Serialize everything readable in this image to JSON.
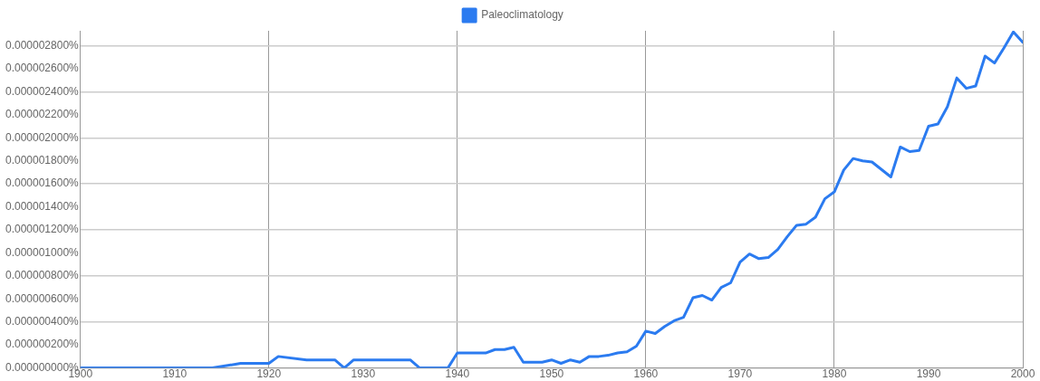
{
  "chart_data": {
    "type": "line",
    "x": [
      1900,
      1914,
      1917,
      1920,
      1921,
      1924,
      1927,
      1928,
      1929,
      1935,
      1936,
      1939,
      1940,
      1943,
      1944,
      1945,
      1946,
      1947,
      1949,
      1950,
      1951,
      1952,
      1953,
      1954,
      1955,
      1956,
      1957,
      1958,
      1959,
      1960,
      1961,
      1962,
      1963,
      1964,
      1965,
      1966,
      1967,
      1968,
      1969,
      1970,
      1971,
      1972,
      1973,
      1974,
      1975,
      1976,
      1977,
      1978,
      1979,
      1980,
      1981,
      1982,
      1983,
      1984,
      1986,
      1987,
      1988,
      1989,
      1990,
      1991,
      1992,
      1993,
      1994,
      1995,
      1996,
      1997,
      1998,
      1999,
      2000
    ],
    "series": [
      {
        "name": "Paleoclimatology",
        "color": "#2b7bf0",
        "values": [
          0,
          0,
          4e-08,
          4e-08,
          1e-07,
          7e-08,
          7e-08,
          0,
          7e-08,
          7e-08,
          0,
          0,
          1.3e-07,
          1.3e-07,
          1.6e-07,
          1.6e-07,
          1.8e-07,
          5e-08,
          5e-08,
          7e-08,
          4e-08,
          7e-08,
          5e-08,
          1e-07,
          1e-07,
          1.1e-07,
          1.3e-07,
          1.4e-07,
          1.9e-07,
          3.2e-07,
          3e-07,
          3.6e-07,
          4.1e-07,
          4.4e-07,
          6.1e-07,
          6.3e-07,
          5.9e-07,
          7e-07,
          7.4e-07,
          9.2e-07,
          9.9e-07,
          9.5e-07,
          9.6e-07,
          1.03e-06,
          1.14e-06,
          1.24e-06,
          1.25e-06,
          1.31e-06,
          1.47e-06,
          1.53e-06,
          1.72e-06,
          1.82e-06,
          1.8e-06,
          1.79e-06,
          1.66e-06,
          1.92e-06,
          1.88e-06,
          1.89e-06,
          2.1e-06,
          2.12e-06,
          2.27e-06,
          2.52e-06,
          2.43e-06,
          2.45e-06,
          2.71e-06,
          2.65e-06,
          2.78e-06,
          2.92e-06,
          2.83e-06
        ]
      }
    ],
    "xlim": [
      1900,
      2000
    ],
    "xticks": [
      1900,
      1910,
      1920,
      1930,
      1940,
      1950,
      1960,
      1970,
      1980,
      1990,
      2000
    ],
    "ylim": [
      0,
      2.93e-06
    ],
    "yticks": [
      {
        "value": 0,
        "label": "0.000000000%"
      },
      {
        "value": 2e-07,
        "label": "0.000000200%"
      },
      {
        "value": 4e-07,
        "label": "0.000000400%"
      },
      {
        "value": 6e-07,
        "label": "0.000000600%"
      },
      {
        "value": 8e-07,
        "label": "0.000000800%"
      },
      {
        "value": 1e-06,
        "label": "0.000001000%"
      },
      {
        "value": 1.2e-06,
        "label": "0.000001200%"
      },
      {
        "value": 1.4e-06,
        "label": "0.000001400%"
      },
      {
        "value": 1.6e-06,
        "label": "0.000001600%"
      },
      {
        "value": 1.8e-06,
        "label": "0.000001800%"
      },
      {
        "value": 2e-06,
        "label": "0.000002000%"
      },
      {
        "value": 2.2e-06,
        "label": "0.000002200%"
      },
      {
        "value": 2.4e-06,
        "label": "0.000002400%"
      },
      {
        "value": 2.6e-06,
        "label": "0.000002600%"
      },
      {
        "value": 2.8e-06,
        "label": "0.000002800%"
      }
    ],
    "grid": true,
    "legend": "top",
    "marker": "none",
    "line_style": "solid"
  }
}
